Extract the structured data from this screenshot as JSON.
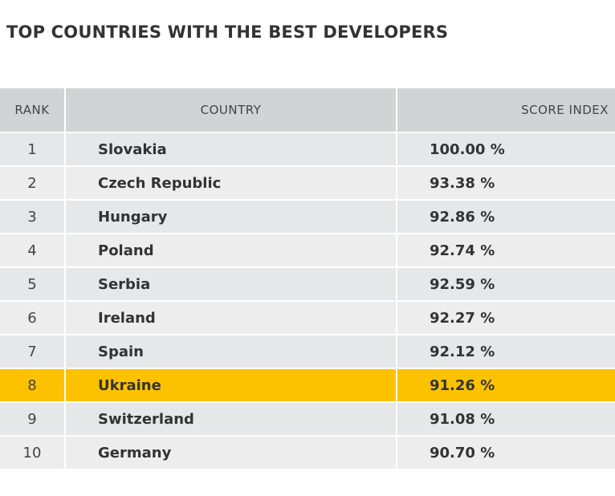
{
  "title": "TOP COUNTRIES WITH THE BEST DEVELOPERS",
  "table": {
    "headers": [
      "RANK",
      "COUNTRY",
      "SCORE INDEX"
    ],
    "rows": [
      [
        "1",
        "Slovakia",
        "100.00 %"
      ],
      [
        "2",
        "Czech Republic",
        "93.38 %"
      ],
      [
        "3",
        "Hungary",
        "92.86 %"
      ],
      [
        "4",
        "Poland",
        "92.74 %"
      ],
      [
        "5",
        "Serbia",
        "92.59 %"
      ],
      [
        "6",
        "Ireland",
        "92.27 %"
      ],
      [
        "7",
        "Spain",
        "92.12 %"
      ],
      [
        "8",
        "Ukraine",
        "91.26 %"
      ],
      [
        "9",
        "Switzerland",
        "91.08 %"
      ],
      [
        "10",
        "Germany",
        "90.70 %"
      ]
    ]
  }
}
